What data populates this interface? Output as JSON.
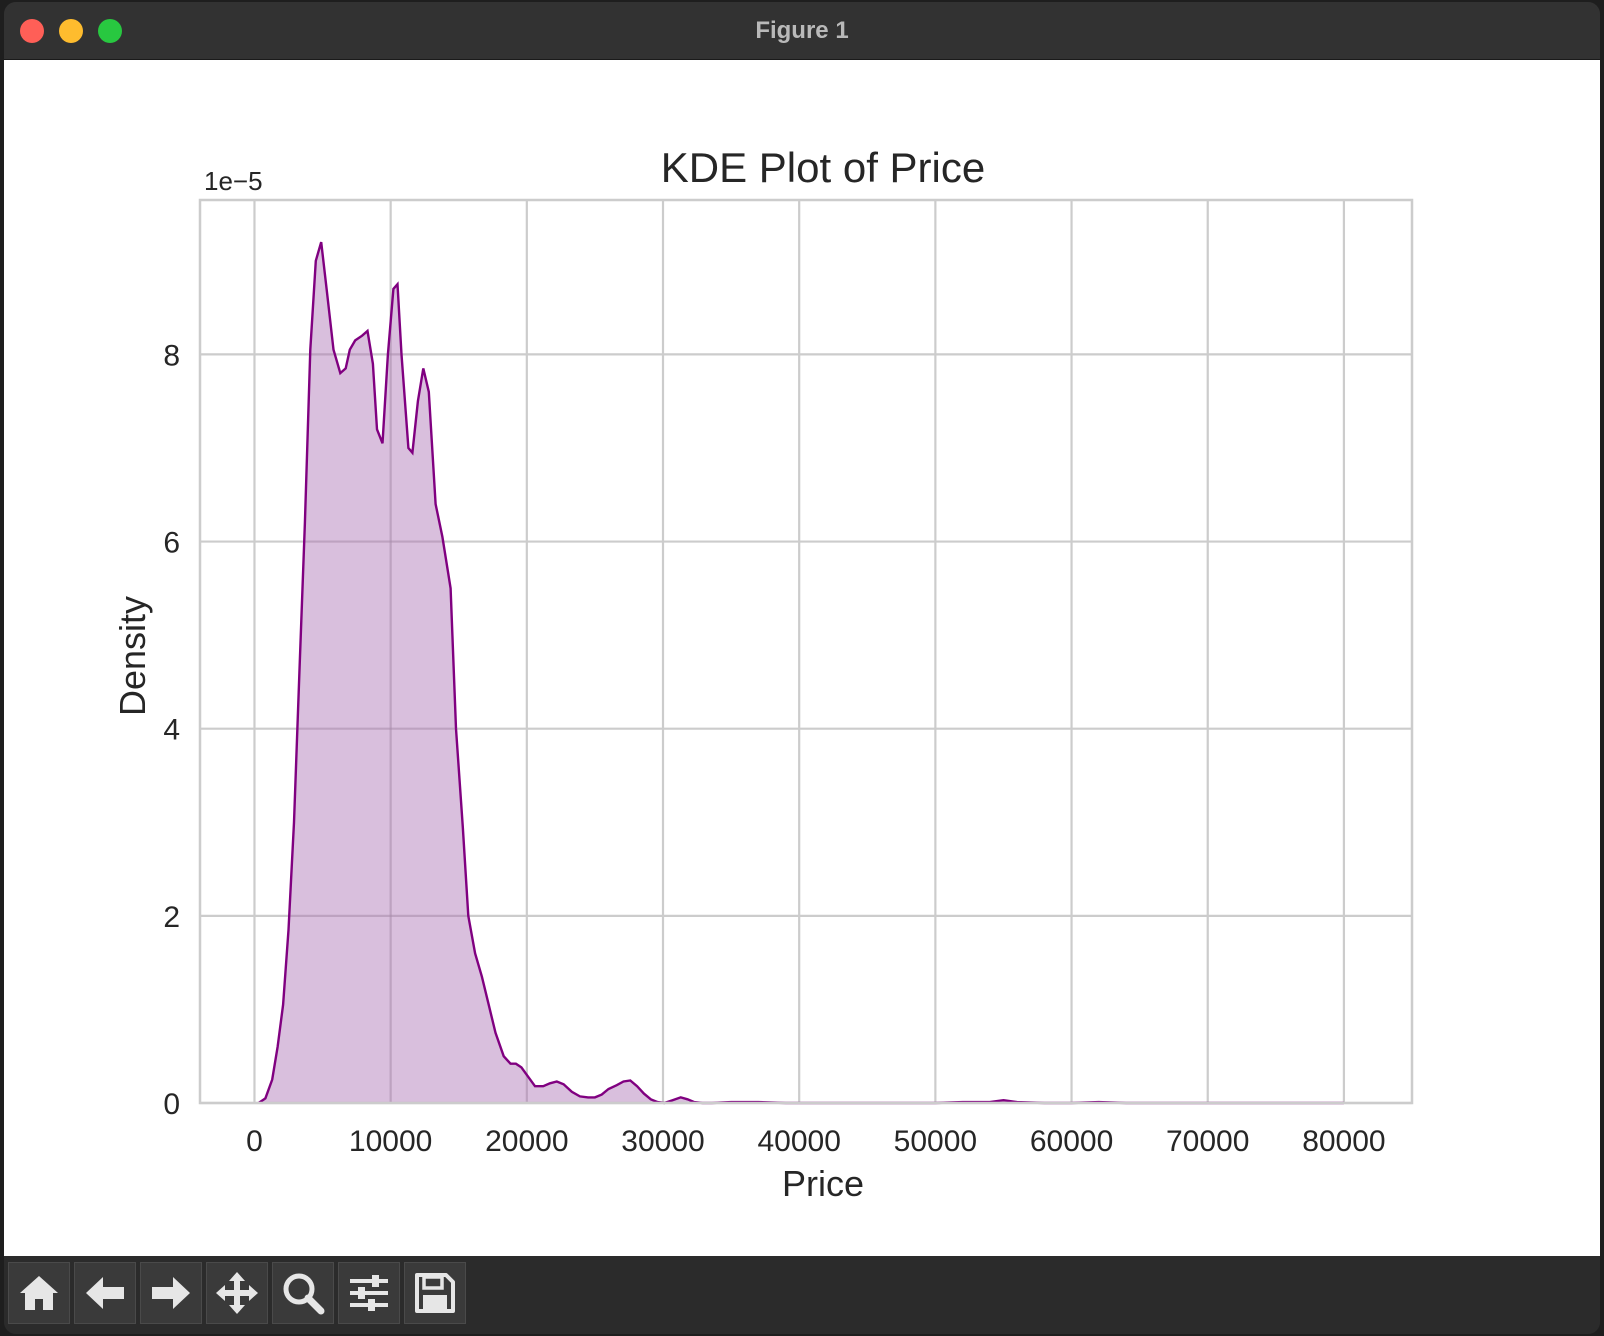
{
  "window": {
    "title": "Figure 1"
  },
  "toolbar": {
    "buttons": [
      {
        "name": "home-button",
        "icon": "home-icon"
      },
      {
        "name": "back-button",
        "icon": "arrow-left-icon"
      },
      {
        "name": "forward-button",
        "icon": "arrow-right-icon"
      },
      {
        "name": "pan-button",
        "icon": "move-icon"
      },
      {
        "name": "zoom-button",
        "icon": "magnifier-icon"
      },
      {
        "name": "configure-subplots-button",
        "icon": "sliders-icon"
      },
      {
        "name": "save-button",
        "icon": "floppy-disk-icon"
      }
    ]
  },
  "chart_data": {
    "type": "area",
    "title": "KDE Plot of Price",
    "xlabel": "Price",
    "ylabel": "Density",
    "y_scale_label": "1e−5",
    "xlim": [
      -4000,
      85000
    ],
    "ylim": [
      0,
      9.65
    ],
    "xticks": [
      0,
      10000,
      20000,
      30000,
      40000,
      50000,
      60000,
      70000,
      80000
    ],
    "xtick_labels": [
      "0",
      "10000",
      "20000",
      "30000",
      "40000",
      "50000",
      "60000",
      "70000",
      "80000"
    ],
    "yticks": [
      0,
      2,
      4,
      6,
      8
    ],
    "ytick_labels": [
      "0",
      "2",
      "4",
      "6",
      "8"
    ],
    "grid": true,
    "line_color": "#800080",
    "fill_color": "#d9bfdd",
    "series": [
      {
        "x": [
          300,
          800,
          1300,
          1700,
          2100,
          2500,
          2900,
          3300,
          3700,
          4100,
          4500,
          4900,
          5300,
          5800,
          6300,
          6700,
          7000,
          7400,
          7900,
          8300,
          8700,
          9000,
          9400,
          9800,
          10200,
          10500,
          10800,
          11300,
          11600,
          12000,
          12400,
          12800,
          13300,
          13800,
          14400,
          14800,
          15300,
          15700,
          16200,
          16700,
          17200,
          17700,
          18300,
          18800,
          19200,
          19600,
          20100,
          20600,
          21200,
          21700,
          22200,
          22700,
          23300,
          23900,
          24500,
          25000,
          25500,
          26000,
          26600,
          27100,
          27600,
          28100,
          28600,
          29100,
          29600,
          30100,
          30700,
          31300,
          31800,
          32300,
          32900,
          33600,
          35000,
          37000,
          39000,
          40000,
          45000,
          50000,
          52000,
          54000,
          55000,
          56000,
          58000,
          60000,
          62000,
          64000,
          70000,
          80000
        ],
        "y": [
          0.0,
          0.05,
          0.25,
          0.6,
          1.05,
          1.85,
          3.0,
          4.6,
          6.2,
          8.05,
          9.0,
          9.2,
          8.7,
          8.05,
          7.8,
          7.85,
          8.05,
          8.15,
          8.2,
          8.25,
          7.9,
          7.2,
          7.05,
          8.0,
          8.7,
          8.75,
          8.0,
          7.0,
          6.95,
          7.5,
          7.85,
          7.6,
          6.4,
          6.05,
          5.5,
          4.0,
          2.95,
          2.0,
          1.6,
          1.35,
          1.05,
          0.75,
          0.5,
          0.42,
          0.42,
          0.38,
          0.28,
          0.18,
          0.18,
          0.21,
          0.23,
          0.2,
          0.12,
          0.07,
          0.06,
          0.06,
          0.09,
          0.15,
          0.19,
          0.23,
          0.24,
          0.18,
          0.1,
          0.04,
          0.01,
          0.0,
          0.03,
          0.06,
          0.04,
          0.01,
          0.0,
          0.0,
          0.01,
          0.01,
          0.0,
          0.0,
          0.0,
          0.0,
          0.01,
          0.01,
          0.03,
          0.01,
          0.0,
          0.0,
          0.01,
          0.0,
          0.0,
          0.0
        ]
      }
    ]
  }
}
